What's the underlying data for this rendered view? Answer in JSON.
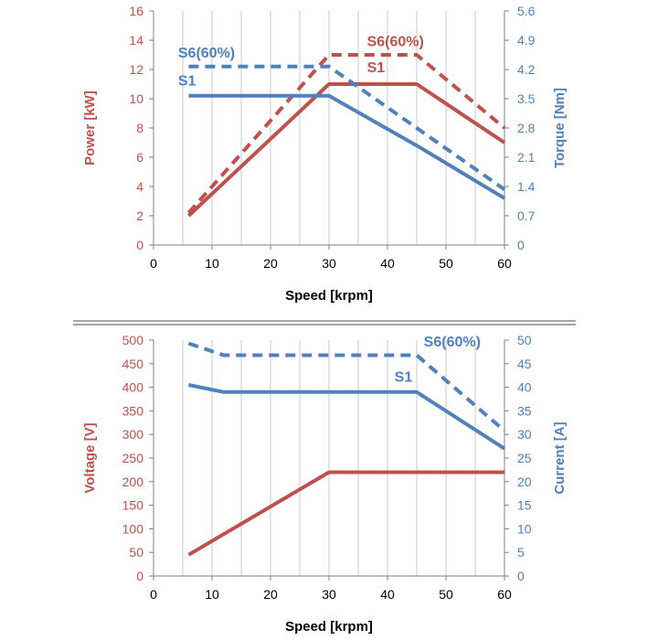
{
  "colors": {
    "red": "#c0504d",
    "blue": "#4f81bd",
    "grid": "#c8c8c8",
    "frame": "#808080",
    "divider": "#888888"
  },
  "chart_data": [
    {
      "type": "line",
      "xlabel": "Speed [krpm]",
      "ylabel": "Power [kW]",
      "y2label": "Torque [Nm]",
      "xlim": [
        0,
        60
      ],
      "ylim": [
        0,
        16
      ],
      "y2lim": [
        0,
        5.6
      ],
      "x_ticks": [
        "0",
        "10",
        "20",
        "30",
        "40",
        "50",
        "60"
      ],
      "y_ticks": [
        "0",
        "2",
        "4",
        "6",
        "8",
        "10",
        "12",
        "14",
        "16"
      ],
      "y2_ticks": [
        "0",
        "0.7",
        "1.4",
        "2.1",
        "2.8",
        "3.5",
        "4.2",
        "4.9",
        "5.6"
      ],
      "grid_x": [
        5,
        10,
        15,
        20,
        25,
        30,
        35,
        40,
        45,
        50,
        55
      ],
      "series": [
        {
          "name": "S1",
          "axis": "left",
          "color": "red",
          "style": "solid",
          "points": [
            [
              6,
              2
            ],
            [
              30,
              11
            ],
            [
              45,
              11
            ],
            [
              60,
              7
            ]
          ]
        },
        {
          "name": "S6(60%)",
          "axis": "left",
          "color": "red",
          "style": "dashed",
          "points": [
            [
              6,
              2.2
            ],
            [
              30,
              13
            ],
            [
              45,
              13
            ],
            [
              60,
              8
            ]
          ]
        },
        {
          "name": "S1",
          "axis": "right",
          "color": "blue",
          "style": "solid",
          "points": [
            [
              6,
              3.57
            ],
            [
              30,
              3.57
            ],
            [
              45,
              2.38
            ],
            [
              60,
              1.12
            ]
          ]
        },
        {
          "name": "S6(60%)",
          "axis": "right",
          "color": "blue",
          "style": "dashed",
          "points": [
            [
              6,
              4.27
            ],
            [
              30,
              4.27
            ],
            [
              45,
              2.8
            ],
            [
              60,
              1.33
            ]
          ]
        }
      ],
      "labels": [
        {
          "text": "S6(60%)",
          "color": "red",
          "at": [
            36.5,
            13.6
          ]
        },
        {
          "text": "S1",
          "color": "red",
          "at": [
            36.5,
            11.8
          ]
        },
        {
          "text": "S6(60%)",
          "color": "blue",
          "at": [
            4.2,
            12.8
          ]
        },
        {
          "text": "S1",
          "color": "blue",
          "at": [
            4.2,
            10.9
          ]
        }
      ]
    },
    {
      "type": "line",
      "xlabel": "Speed [krpm]",
      "ylabel": "Voltage [V]",
      "y2label": "Current [A]",
      "xlim": [
        0,
        60
      ],
      "ylim": [
        0,
        500
      ],
      "y2lim": [
        0,
        50
      ],
      "x_ticks": [
        "0",
        "10",
        "20",
        "30",
        "40",
        "50",
        "60"
      ],
      "y_ticks": [
        "0",
        "50",
        "100",
        "150",
        "200",
        "250",
        "300",
        "350",
        "400",
        "450",
        "500"
      ],
      "y2_ticks": [
        "0",
        "5",
        "10",
        "15",
        "20",
        "25",
        "30",
        "35",
        "40",
        "45",
        "50"
      ],
      "grid_x": [
        5,
        10,
        15,
        20,
        25,
        30,
        35,
        40,
        45,
        50,
        55
      ],
      "series": [
        {
          "name": "",
          "axis": "left",
          "color": "red",
          "style": "solid",
          "points": [
            [
              6,
              45
            ],
            [
              30,
              220
            ],
            [
              60,
              220
            ]
          ]
        },
        {
          "name": "S1",
          "axis": "right",
          "color": "blue",
          "style": "solid",
          "points": [
            [
              6,
              40.5
            ],
            [
              12,
              39
            ],
            [
              45,
              39
            ],
            [
              60,
              27
            ]
          ]
        },
        {
          "name": "S6(60%)",
          "axis": "right",
          "color": "blue",
          "style": "dashed",
          "points": [
            [
              6,
              49.3
            ],
            [
              12,
              46.8
            ],
            [
              45,
              46.8
            ],
            [
              60,
              30.8
            ]
          ]
        }
      ],
      "labels": [
        {
          "text": "S6(60%)",
          "color": "blue",
          "at": [
            46.2,
            48.6
          ]
        },
        {
          "text": "S1",
          "color": "blue",
          "at": [
            41.2,
            41.2
          ]
        }
      ]
    }
  ]
}
